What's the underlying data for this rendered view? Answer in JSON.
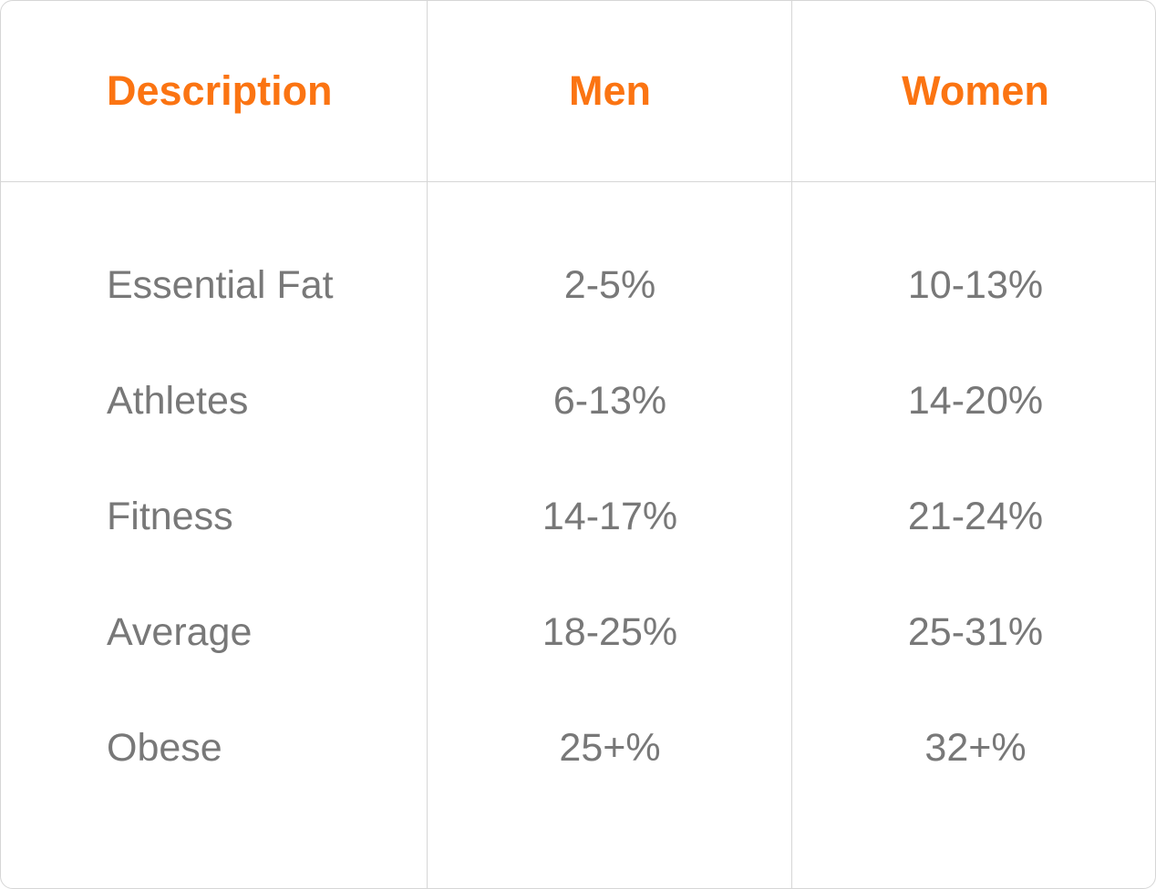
{
  "table": {
    "headers": {
      "description": "Description",
      "men": "Men",
      "women": "Women"
    },
    "rows": [
      {
        "description": "Essential Fat",
        "men": "2-5%",
        "women": "10-13%"
      },
      {
        "description": "Athletes",
        "men": "6-13%",
        "women": "14-20%"
      },
      {
        "description": "Fitness",
        "men": "14-17%",
        "women": "21-24%"
      },
      {
        "description": "Average",
        "men": "18-25%",
        "women": "25-31%"
      },
      {
        "description": "Obese",
        "men": "25+%",
        "women": "32+%"
      }
    ]
  },
  "colors": {
    "header_text": "#fb7412",
    "body_text": "#787878",
    "border": "#d6d6d6"
  }
}
